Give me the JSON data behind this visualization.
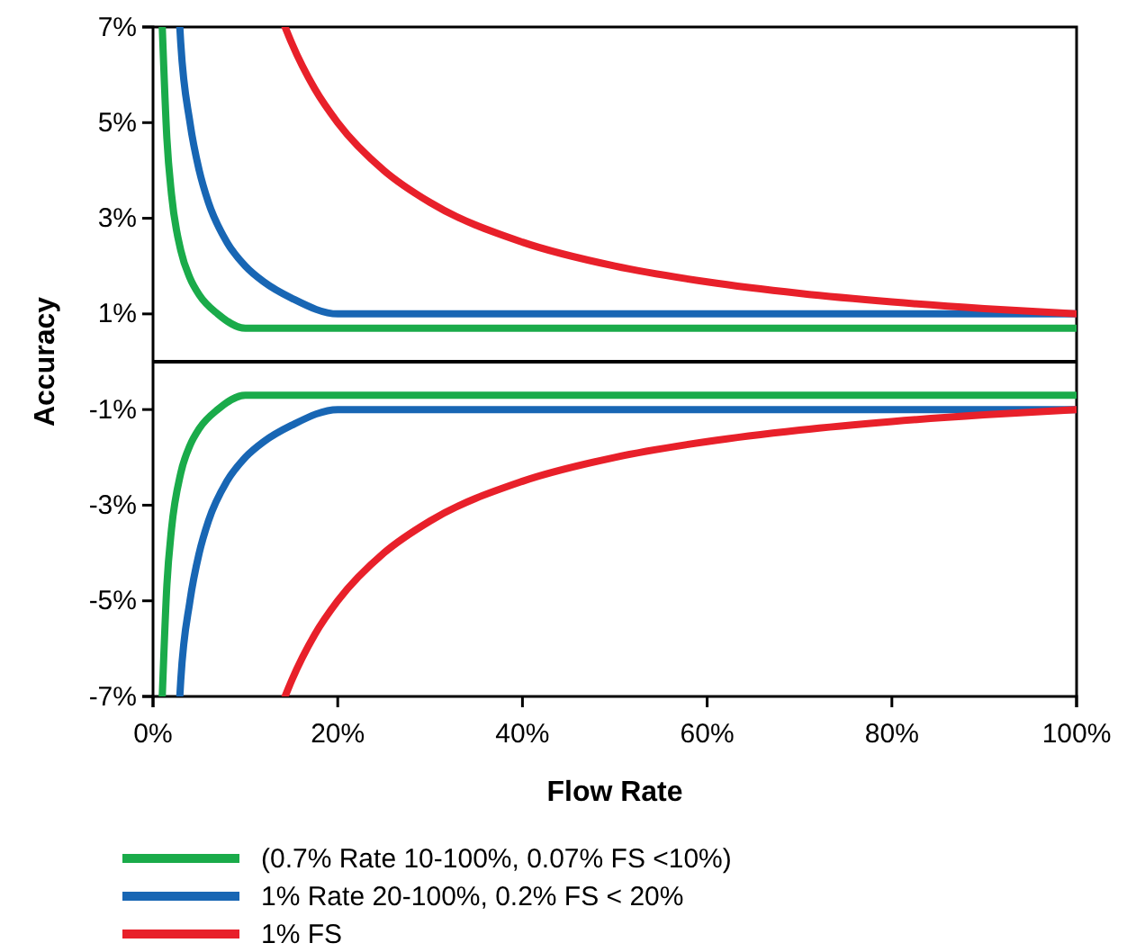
{
  "chart_data": {
    "type": "line",
    "xlabel": "Flow Rate",
    "ylabel": "Accuracy",
    "xlim": [
      0,
      100
    ],
    "ylim": [
      -7,
      7
    ],
    "xticks": [
      {
        "value": 0,
        "label": "0%"
      },
      {
        "value": 20,
        "label": "20%"
      },
      {
        "value": 40,
        "label": "40%"
      },
      {
        "value": 60,
        "label": "60%"
      },
      {
        "value": 80,
        "label": "80%"
      },
      {
        "value": 100,
        "label": "100%"
      }
    ],
    "yticks": [
      {
        "value": 7,
        "label": "7%"
      },
      {
        "value": 5,
        "label": "5%"
      },
      {
        "value": 3,
        "label": "3%"
      },
      {
        "value": 1,
        "label": "1%"
      },
      {
        "value": -1,
        "label": "-1%"
      },
      {
        "value": -3,
        "label": "-3%"
      },
      {
        "value": -5,
        "label": "-5%"
      },
      {
        "value": -7,
        "label": "-7%"
      }
    ],
    "grid": false,
    "legend": "bottom",
    "marker": "none",
    "line_style": "solid",
    "ref_lines": [
      {
        "axis": "y",
        "value": 0,
        "color": "#000000"
      }
    ],
    "series": [
      {
        "name": "(0.7% Rate 10-100%, 0.07% FS <10%)",
        "color": "#1aab4a",
        "x": [
          1,
          1.5,
          2,
          3,
          4,
          5,
          7,
          10,
          100
        ],
        "values": [
          7,
          4.67,
          3.5,
          2.33,
          1.75,
          1.4,
          1,
          0.7,
          0.7
        ]
      },
      {
        "name": "1% Rate 20-100%, 0.2% FS < 20%",
        "color": "#1866b4",
        "x": [
          2.9,
          3,
          4,
          5,
          6,
          8,
          10,
          12,
          15,
          20,
          100
        ],
        "values": [
          7,
          6.67,
          5,
          4,
          3.33,
          2.5,
          2,
          1.67,
          1.33,
          1,
          1
        ]
      },
      {
        "name": "1% FS",
        "color": "#e8202a",
        "x": [
          14.3,
          15,
          17.5,
          20,
          25,
          30,
          40,
          50,
          60,
          70,
          80,
          90,
          100
        ],
        "values": [
          7,
          6.67,
          5.71,
          5,
          4,
          3.33,
          2.5,
          2,
          1.67,
          1.43,
          1.25,
          1.11,
          1
        ]
      },
      {
        "color": "#1aab4a",
        "x": [
          1,
          1.5,
          2,
          3,
          4,
          5,
          7,
          10,
          100
        ],
        "values": [
          -7,
          -4.67,
          -3.5,
          -2.33,
          -1.75,
          -1.4,
          -1,
          -0.7,
          -0.7
        ]
      },
      {
        "color": "#1866b4",
        "x": [
          2.9,
          3,
          4,
          5,
          6,
          8,
          10,
          12,
          15,
          20,
          100
        ],
        "values": [
          -7,
          -6.67,
          -5,
          -4,
          -3.33,
          -2.5,
          -2,
          -1.67,
          -1.33,
          -1,
          -1
        ]
      },
      {
        "color": "#e8202a",
        "x": [
          14.3,
          15,
          17.5,
          20,
          25,
          30,
          40,
          50,
          60,
          70,
          80,
          90,
          100
        ],
        "values": [
          -7,
          -6.67,
          -5.71,
          -5,
          -4,
          -3.33,
          -2.5,
          -2,
          -1.67,
          -1.43,
          -1.25,
          -1.11,
          -1
        ]
      }
    ]
  }
}
